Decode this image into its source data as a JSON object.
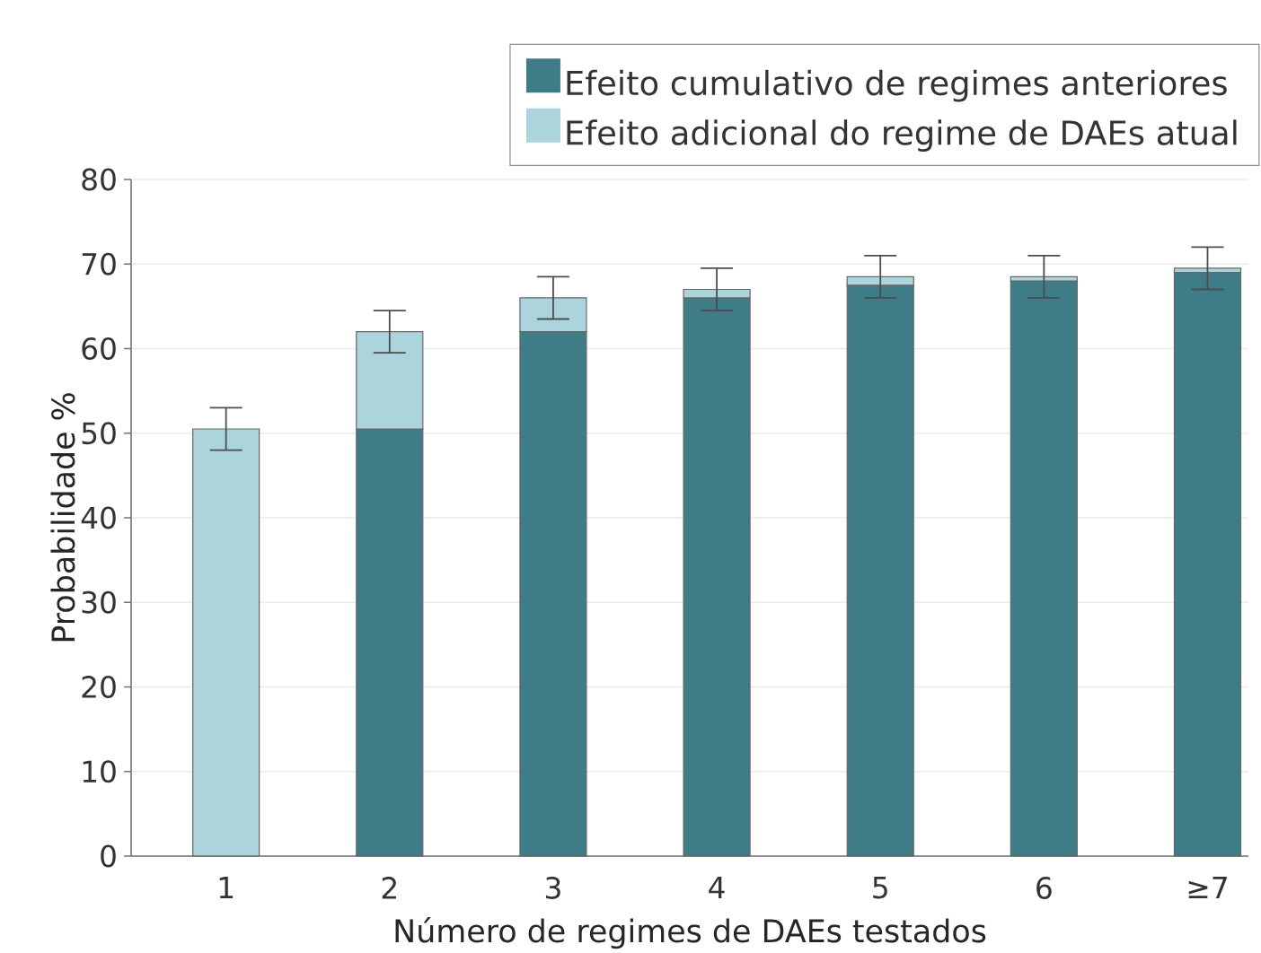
{
  "chart_data": {
    "type": "bar",
    "stacked": true,
    "categories": [
      "1",
      "2",
      "3",
      "4",
      "5",
      "6",
      "≥7"
    ],
    "series": [
      {
        "name": "Efeito cumulativo de regimes anteriores",
        "color": "#3e7d87",
        "values": [
          0,
          50.5,
          62,
          66,
          67.5,
          68,
          69
        ]
      },
      {
        "name": "Efeito adicional do regime de DAEs atual",
        "color": "#abd4dd",
        "values": [
          50.5,
          11.5,
          4,
          1,
          1,
          0.5,
          0.5
        ],
        "errors": [
          2.5,
          2.5,
          2.5,
          2.5,
          2.5,
          2.5,
          2.5
        ]
      }
    ],
    "xlabel": "Número de regimes de DAEs testados",
    "ylabel": "Probabilidade %",
    "ylim": [
      0,
      80
    ],
    "yticks": [
      0,
      10,
      20,
      30,
      40,
      50,
      60,
      70,
      80
    ],
    "grid": "y",
    "legend": "top right"
  }
}
